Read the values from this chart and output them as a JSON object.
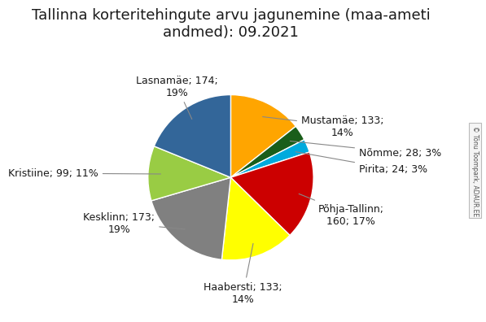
{
  "title": "Tallinna korteritehingute arvu jagunemine (maa-ameti\nandmed): 09.2021",
  "labels": [
    "Mustamäe",
    "Nõmme",
    "Pirita",
    "Põhja-Tallinn",
    "Haabersti",
    "Kesklinn",
    "Kristiine",
    "Lasnamäe"
  ],
  "values": [
    133,
    28,
    24,
    160,
    133,
    173,
    99,
    174
  ],
  "percents": [
    14,
    3,
    3,
    17,
    14,
    19,
    11,
    19
  ],
  "colors": [
    "#FFA500",
    "#1a5e1a",
    "#00AADD",
    "#CC0000",
    "#FFFF00",
    "#808080",
    "#99CC44",
    "#336699"
  ],
  "startangle": 90,
  "title_fontsize": 13,
  "label_fontsize": 9
}
